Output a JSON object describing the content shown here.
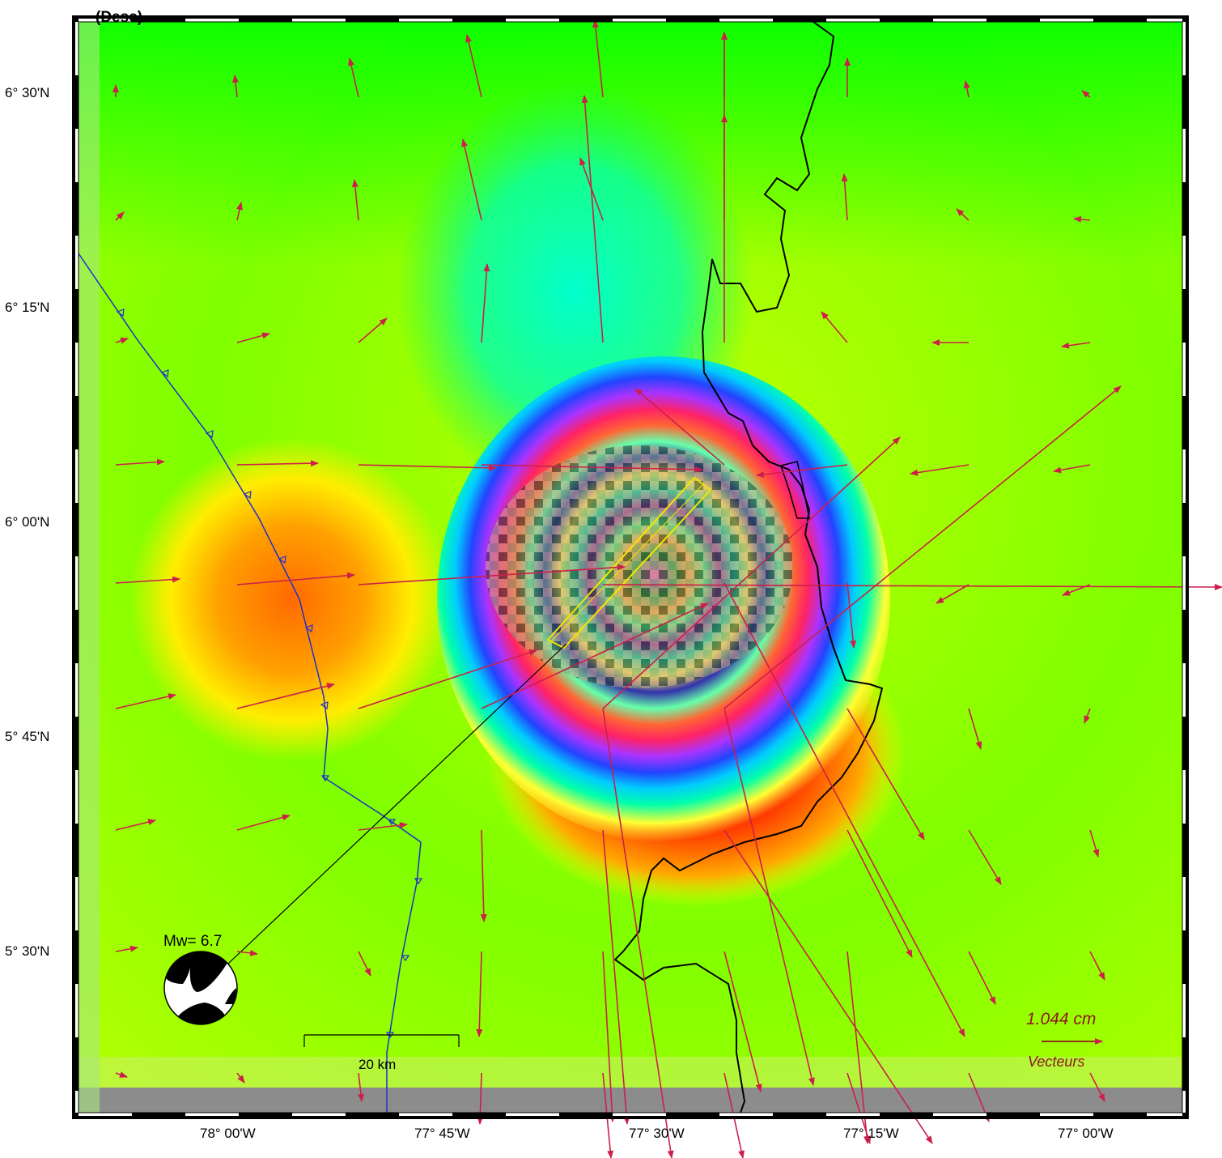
{
  "title": "(Desc)",
  "lat_labels": [
    "6° 30'N",
    "6° 15'N",
    "6° 00'N",
    "5° 45'N",
    "5° 30'N"
  ],
  "lon_labels": [
    "78° 00'W",
    "77° 45'W",
    "77° 30'W",
    "77° 15'W",
    "77° 00'W"
  ],
  "magnitude_label": "Mw= 6.7",
  "scale_bar_label": "20 km",
  "legend": {
    "value": "1.044  cm",
    "caption": "Vecteurs"
  },
  "colors": {
    "vector": "#cc1f4a",
    "coast": "#000000",
    "trench": "#1f2fcc",
    "fault": "#f5e600"
  },
  "icons": [
    "beachball-icon"
  ]
}
